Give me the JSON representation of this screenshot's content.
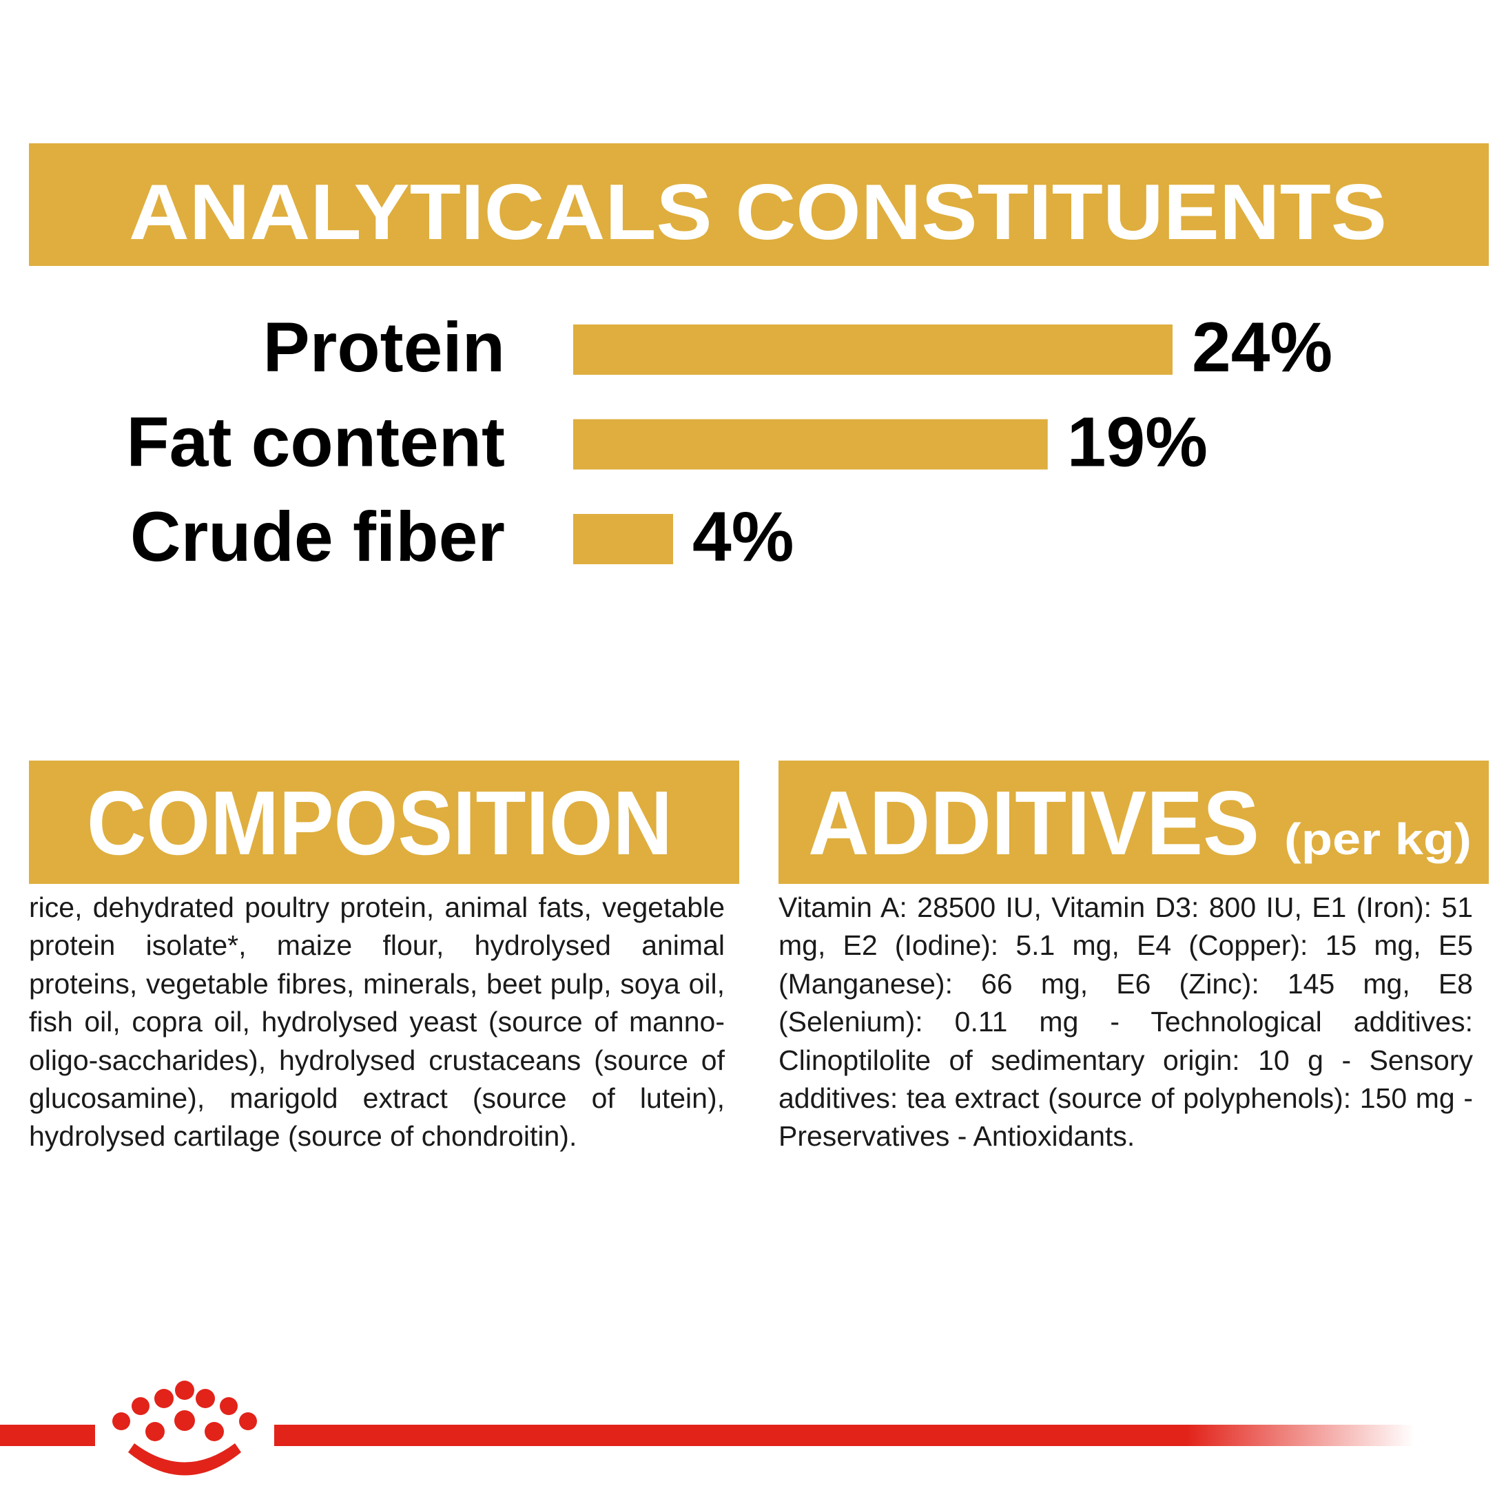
{
  "chart_data": {
    "type": "bar",
    "title": "ANALYTICALS CONSTITUENTS",
    "categories": [
      "Protein",
      "Fat content",
      "Crude fiber"
    ],
    "values": [
      24,
      19,
      4
    ],
    "value_labels": [
      "24%",
      "19%",
      "4%"
    ],
    "color": "#dfae3e"
  },
  "composition": {
    "title": "COMPOSITION",
    "text": "rice, dehydrated poultry protein, animal fats, vegetable protein isolate*, maize flour, hydrolysed animal proteins, vegetable fibres, minerals, beet pulp, soya oil, fish oil, copra oil, hydrolysed yeast (source of manno-oligo-saccharides), hydrolysed crustaceans (source of glucosamine), marigold extract (source of lutein), hydrolysed cartilage (source of chondroitin)."
  },
  "additives": {
    "title": "ADDITIVES",
    "subtitle": "(per kg)",
    "text": "Vitamin A: 28500 IU, Vitamin D3: 800 IU, E1 (Iron): 51 mg, E2 (Iodine): 5.1 mg, E4 (Copper): 15 mg, E5 (Manganese): 66 mg, E6 (Zinc): 145 mg, E8 (Selenium): 0.11 mg - Technological additives: Clinoptilolite of sedimentary origin: 10 g - Sensory additives: tea extract (source of polyphenols): 150 mg - Preservatives - Antioxidants."
  }
}
